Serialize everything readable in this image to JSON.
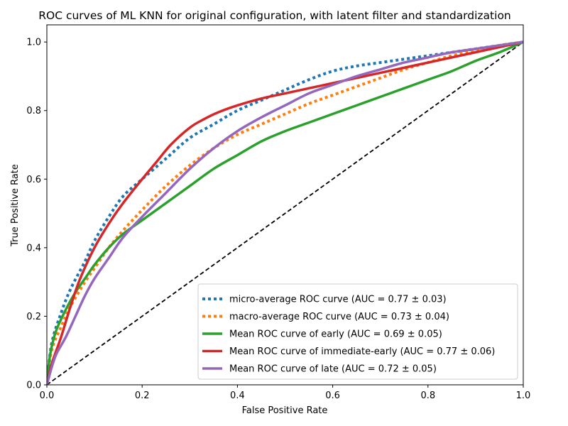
{
  "chart_data": {
    "type": "line",
    "title": "ROC curves of ML KNN for original configuration, with latent filter and standardization",
    "xlabel": "False Positive Rate",
    "ylabel": "True Positive Rate",
    "xlim": [
      0.0,
      1.0
    ],
    "ylim": [
      0.0,
      1.05
    ],
    "xticks": [
      "0.0",
      "0.2",
      "0.4",
      "0.6",
      "0.8",
      "1.0"
    ],
    "yticks": [
      "0.0",
      "0.2",
      "0.4",
      "0.6",
      "0.8",
      "1.0"
    ],
    "grid": false,
    "legend_position": "lower-right",
    "series": [
      {
        "name": "micro-average ROC curve (AUC = 0.77 ± 0.03)",
        "color": "#1f77b4",
        "style": "dotted",
        "x": [
          0,
          0.01,
          0.03,
          0.05,
          0.08,
          0.1,
          0.13,
          0.16,
          0.2,
          0.25,
          0.3,
          0.35,
          0.4,
          0.45,
          0.5,
          0.55,
          0.6,
          0.65,
          0.7,
          0.75,
          0.8,
          0.85,
          0.9,
          0.95,
          1.0
        ],
        "y": [
          0,
          0.12,
          0.21,
          0.28,
          0.36,
          0.42,
          0.49,
          0.55,
          0.6,
          0.66,
          0.72,
          0.76,
          0.8,
          0.83,
          0.86,
          0.89,
          0.915,
          0.93,
          0.94,
          0.95,
          0.96,
          0.97,
          0.98,
          0.99,
          1.0
        ]
      },
      {
        "name": "macro-average ROC curve (AUC = 0.73 ± 0.04)",
        "color": "#ff7f0e",
        "style": "dotted",
        "x": [
          0,
          0.01,
          0.03,
          0.05,
          0.08,
          0.1,
          0.13,
          0.16,
          0.2,
          0.25,
          0.3,
          0.35,
          0.4,
          0.45,
          0.5,
          0.55,
          0.6,
          0.65,
          0.7,
          0.75,
          0.8,
          0.85,
          0.9,
          0.95,
          1.0
        ],
        "y": [
          0,
          0.1,
          0.17,
          0.23,
          0.3,
          0.34,
          0.4,
          0.45,
          0.51,
          0.58,
          0.64,
          0.69,
          0.73,
          0.76,
          0.79,
          0.82,
          0.845,
          0.87,
          0.895,
          0.92,
          0.94,
          0.96,
          0.975,
          0.99,
          1.0
        ]
      },
      {
        "name": "Mean ROC curve of early (AUC = 0.69 ± 0.05)",
        "color": "#2ca02c",
        "style": "solid",
        "x": [
          0,
          0.005,
          0.01,
          0.02,
          0.04,
          0.06,
          0.08,
          0.1,
          0.13,
          0.16,
          0.2,
          0.25,
          0.3,
          0.35,
          0.4,
          0.45,
          0.5,
          0.55,
          0.6,
          0.65,
          0.7,
          0.75,
          0.8,
          0.85,
          0.9,
          0.95,
          1.0
        ],
        "y": [
          0,
          0.07,
          0.11,
          0.16,
          0.22,
          0.27,
          0.31,
          0.35,
          0.4,
          0.44,
          0.48,
          0.53,
          0.58,
          0.63,
          0.67,
          0.71,
          0.74,
          0.765,
          0.79,
          0.815,
          0.84,
          0.865,
          0.89,
          0.915,
          0.945,
          0.97,
          1.0
        ]
      },
      {
        "name": "Mean ROC curve of immediate-early (AUC = 0.77 ± 0.06)",
        "color": "#d62728",
        "style": "solid",
        "x": [
          0,
          0.01,
          0.03,
          0.05,
          0.07,
          0.1,
          0.13,
          0.16,
          0.2,
          0.23,
          0.26,
          0.3,
          0.33,
          0.36,
          0.4,
          0.45,
          0.5,
          0.55,
          0.6,
          0.65,
          0.7,
          0.75,
          0.8,
          0.85,
          0.9,
          0.95,
          1.0
        ],
        "y": [
          0,
          0.06,
          0.14,
          0.23,
          0.31,
          0.4,
          0.47,
          0.53,
          0.6,
          0.65,
          0.7,
          0.75,
          0.775,
          0.795,
          0.815,
          0.835,
          0.85,
          0.865,
          0.88,
          0.895,
          0.91,
          0.925,
          0.94,
          0.955,
          0.97,
          0.985,
          1.0
        ]
      },
      {
        "name": "Mean ROC curve of late (AUC = 0.72 ± 0.05)",
        "color": "#9467bd",
        "style": "solid",
        "x": [
          0,
          0.01,
          0.02,
          0.04,
          0.06,
          0.08,
          0.1,
          0.13,
          0.16,
          0.2,
          0.25,
          0.3,
          0.35,
          0.4,
          0.45,
          0.5,
          0.55,
          0.6,
          0.65,
          0.7,
          0.75,
          0.8,
          0.85,
          0.9,
          0.95,
          1.0
        ],
        "y": [
          0,
          0.05,
          0.09,
          0.14,
          0.2,
          0.26,
          0.31,
          0.37,
          0.43,
          0.49,
          0.56,
          0.63,
          0.69,
          0.74,
          0.78,
          0.815,
          0.85,
          0.875,
          0.9,
          0.92,
          0.94,
          0.955,
          0.97,
          0.98,
          0.99,
          1.0
        ]
      }
    ],
    "reference_line": {
      "color": "#000000",
      "style": "dashed",
      "x": [
        0,
        1.0
      ],
      "y": [
        0,
        1.0
      ]
    }
  }
}
